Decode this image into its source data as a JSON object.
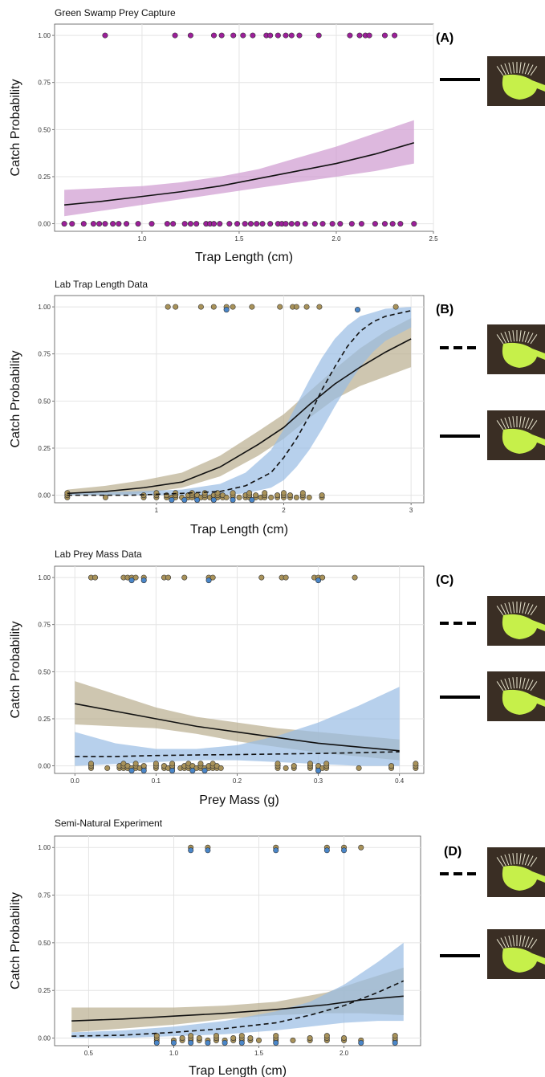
{
  "colors": {
    "magenta_points": "#9c1f9a",
    "magenta_band": "#cf9ad0",
    "tan_points": "#a8925a",
    "tan_band": "#b9ae8e",
    "blue_points": "#4a86c8",
    "blue_band": "#98bce4",
    "curve": "#111111",
    "grid": "#e4e4e4",
    "trap_photo_bg": "#3a2e24",
    "trap_green": "#c6f04a"
  },
  "legend_icons": [
    "solid-line-icon",
    "dashed-line-icon",
    "venus-flytrap-photo-icon"
  ],
  "chart_data": [
    {
      "type": "scatter",
      "letter": "(A)",
      "title": "Green Swamp Prey Capture",
      "xlabel": "Trap Length (cm)",
      "ylabel": "Catch Probability",
      "xlim": [
        0.55,
        2.5
      ],
      "ylim": [
        -0.04,
        1.06
      ],
      "xticks": [
        1.0,
        1.5,
        2.0,
        2.5
      ],
      "xtick_labels": [
        "1.0",
        "1.5",
        "2.0",
        "2.5"
      ],
      "yticks": [
        0,
        0.25,
        0.5,
        0.75,
        1.0
      ],
      "ytick_labels": [
        "0.00",
        "0.25",
        "0.50",
        "0.75",
        "1.00"
      ],
      "grid": true,
      "legend": [
        {
          "line": "solid"
        }
      ],
      "series": [
        {
          "style": "solid",
          "color": "magenta",
          "x": [
            0.6,
            0.8,
            1.0,
            1.2,
            1.4,
            1.6,
            1.8,
            2.0,
            2.2,
            2.4
          ],
          "y": [
            0.1,
            0.12,
            0.145,
            0.17,
            0.2,
            0.24,
            0.28,
            0.32,
            0.37,
            0.43
          ],
          "lower": [
            0.04,
            0.07,
            0.1,
            0.13,
            0.16,
            0.19,
            0.22,
            0.25,
            0.28,
            0.32
          ],
          "upper": [
            0.18,
            0.19,
            0.2,
            0.22,
            0.25,
            0.29,
            0.35,
            0.41,
            0.48,
            0.55
          ],
          "points": {
            "x1": [
              0.81,
              1.17,
              1.25,
              1.37,
              1.41,
              1.47,
              1.52,
              1.57,
              1.64,
              1.66,
              1.7,
              1.74,
              1.77,
              1.81,
              1.91,
              2.07,
              2.12,
              2.15,
              2.17,
              2.25,
              2.3
            ],
            "x0": [
              0.6,
              0.64,
              0.7,
              0.75,
              0.78,
              0.81,
              0.85,
              0.88,
              0.92,
              0.98,
              1.05,
              1.13,
              1.16,
              1.22,
              1.25,
              1.28,
              1.33,
              1.35,
              1.37,
              1.4,
              1.45,
              1.49,
              1.53,
              1.56,
              1.59,
              1.62,
              1.66,
              1.7,
              1.72,
              1.74,
              1.77,
              1.8,
              1.84,
              1.89,
              1.93,
              1.98,
              2.02,
              2.08,
              2.13,
              2.2,
              2.25,
              2.29,
              2.33,
              2.4
            ]
          }
        }
      ]
    },
    {
      "type": "scatter",
      "letter": "(B)",
      "title": "Lab Trap Length Data",
      "xlabel": "Trap Length (cm)",
      "ylabel": "Catch Probability",
      "xlim": [
        0.2,
        3.1
      ],
      "ylim": [
        -0.04,
        1.06
      ],
      "xticks": [
        1,
        2,
        3
      ],
      "xtick_labels": [
        "1",
        "2",
        "3"
      ],
      "yticks": [
        0,
        0.25,
        0.5,
        0.75,
        1.0
      ],
      "ytick_labels": [
        "0.00",
        "0.25",
        "0.50",
        "0.75",
        "1.00"
      ],
      "grid": true,
      "legend": [
        {
          "line": "dashed"
        },
        {
          "line": "solid"
        }
      ],
      "series": [
        {
          "style": "solid",
          "color": "tan",
          "x": [
            0.3,
            0.6,
            0.9,
            1.2,
            1.5,
            1.8,
            2.0,
            2.2,
            2.4,
            2.6,
            2.8,
            3.0
          ],
          "y": [
            0.01,
            0.02,
            0.04,
            0.07,
            0.15,
            0.27,
            0.36,
            0.48,
            0.59,
            0.68,
            0.76,
            0.83
          ],
          "lower": [
            0.0,
            0.0,
            0.01,
            0.04,
            0.1,
            0.21,
            0.3,
            0.41,
            0.51,
            0.58,
            0.63,
            0.68
          ],
          "upper": [
            0.03,
            0.05,
            0.08,
            0.12,
            0.21,
            0.34,
            0.43,
            0.55,
            0.67,
            0.78,
            0.87,
            0.94
          ]
        },
        {
          "style": "dashed",
          "color": "blue",
          "x": [
            0.3,
            0.8,
            1.2,
            1.5,
            1.7,
            1.9,
            2.0,
            2.1,
            2.2,
            2.3,
            2.4,
            2.5,
            2.6,
            2.7,
            2.8,
            3.0
          ],
          "y": [
            0.0,
            0.0,
            0.01,
            0.02,
            0.05,
            0.12,
            0.2,
            0.3,
            0.42,
            0.56,
            0.68,
            0.79,
            0.87,
            0.92,
            0.95,
            0.98
          ],
          "lower": [
            0.0,
            0.0,
            0.0,
            0.0,
            0.01,
            0.04,
            0.08,
            0.15,
            0.24,
            0.35,
            0.47,
            0.58,
            0.68,
            0.76,
            0.82,
            0.89
          ],
          "upper": [
            0.01,
            0.02,
            0.03,
            0.06,
            0.12,
            0.24,
            0.35,
            0.48,
            0.61,
            0.73,
            0.83,
            0.9,
            0.95,
            0.97,
            0.99,
            1.0
          ]
        }
      ],
      "points": {
        "tan_1": [
          1.09,
          1.15,
          1.35,
          1.45,
          1.55,
          1.6,
          1.75,
          1.97,
          2.07,
          2.1,
          2.18,
          2.28,
          2.88
        ],
        "blue_1": [
          1.55,
          2.58
        ],
        "tan_0": [
          0.3,
          0.6,
          0.9,
          1.0,
          1.08,
          1.12,
          1.15,
          1.2,
          1.25,
          1.28,
          1.32,
          1.35,
          1.38,
          1.42,
          1.45,
          1.48,
          1.52,
          1.55,
          1.6,
          1.65,
          1.7,
          1.73,
          1.78,
          1.82,
          1.85,
          1.9,
          1.95,
          2.0,
          2.05,
          2.1,
          2.15,
          2.2,
          2.3
        ],
        "blue_0": [
          1.12,
          1.22,
          1.32,
          1.45,
          1.6,
          1.75
        ]
      }
    },
    {
      "type": "scatter",
      "letter": "(C)",
      "title": "Lab Prey Mass Data",
      "xlabel": "Prey Mass (g)",
      "ylabel": "Catch Probability",
      "xlim": [
        -0.025,
        0.43
      ],
      "ylim": [
        -0.04,
        1.06
      ],
      "xticks": [
        0.0,
        0.1,
        0.2,
        0.3,
        0.4
      ],
      "xtick_labels": [
        "0.0",
        "0.1",
        "0.2",
        "0.3",
        "0.4"
      ],
      "yticks": [
        0,
        0.25,
        0.5,
        0.75,
        1.0
      ],
      "ytick_labels": [
        "0.00",
        "0.25",
        "0.50",
        "0.75",
        "1.00"
      ],
      "grid": true,
      "legend": [
        {
          "line": "dashed"
        },
        {
          "line": "solid"
        }
      ],
      "series": [
        {
          "style": "solid",
          "color": "tan",
          "x": [
            0.0,
            0.05,
            0.1,
            0.15,
            0.2,
            0.25,
            0.3,
            0.35,
            0.4
          ],
          "y": [
            0.33,
            0.29,
            0.25,
            0.21,
            0.18,
            0.15,
            0.12,
            0.1,
            0.08
          ],
          "lower": [
            0.22,
            0.21,
            0.2,
            0.17,
            0.13,
            0.1,
            0.07,
            0.05,
            0.03
          ],
          "upper": [
            0.45,
            0.38,
            0.31,
            0.26,
            0.23,
            0.2,
            0.18,
            0.16,
            0.14
          ]
        },
        {
          "style": "dashed",
          "color": "blue",
          "x": [
            0.0,
            0.05,
            0.1,
            0.15,
            0.2,
            0.25,
            0.3,
            0.35,
            0.4
          ],
          "y": [
            0.05,
            0.05,
            0.055,
            0.058,
            0.06,
            0.063,
            0.066,
            0.07,
            0.075
          ],
          "lower": [
            0.0,
            0.01,
            0.02,
            0.03,
            0.03,
            0.02,
            0.01,
            0.0,
            0.0
          ],
          "upper": [
            0.18,
            0.12,
            0.09,
            0.09,
            0.11,
            0.16,
            0.23,
            0.32,
            0.42
          ]
        }
      ],
      "points": {
        "tan_1": [
          0.02,
          0.025,
          0.06,
          0.065,
          0.07,
          0.075,
          0.085,
          0.11,
          0.115,
          0.135,
          0.165,
          0.17,
          0.23,
          0.255,
          0.26,
          0.295,
          0.3,
          0.305,
          0.345
        ],
        "blue_1": [
          0.07,
          0.085,
          0.165,
          0.3
        ],
        "tan_0": [
          0.02,
          0.04,
          0.055,
          0.06,
          0.065,
          0.07,
          0.075,
          0.08,
          0.085,
          0.1,
          0.11,
          0.115,
          0.12,
          0.13,
          0.135,
          0.14,
          0.145,
          0.15,
          0.155,
          0.16,
          0.165,
          0.17,
          0.175,
          0.18,
          0.25,
          0.26,
          0.27,
          0.29,
          0.3,
          0.305,
          0.31,
          0.35,
          0.39,
          0.42
        ],
        "blue_0": [
          0.07,
          0.085,
          0.12,
          0.145,
          0.16,
          0.3
        ]
      }
    },
    {
      "type": "scatter",
      "letter": "(D)",
      "title": "Semi-Natural Experiment",
      "xlabel": "Trap Length (cm)",
      "ylabel": "Catch Probability",
      "xlim": [
        0.3,
        2.45
      ],
      "ylim": [
        -0.04,
        1.06
      ],
      "xticks": [
        0.5,
        1.0,
        1.5,
        2.0
      ],
      "xtick_labels": [
        "0.5",
        "1.0",
        "1.5",
        "2.0"
      ],
      "yticks": [
        0,
        0.25,
        0.5,
        0.75,
        1.0
      ],
      "ytick_labels": [
        "0.00",
        "0.25",
        "0.50",
        "0.75",
        "1.00"
      ],
      "grid": true,
      "legend": [
        {
          "line": "dashed"
        },
        {
          "line": "solid"
        }
      ],
      "series": [
        {
          "style": "solid",
          "color": "tan",
          "x": [
            0.4,
            0.7,
            1.0,
            1.3,
            1.6,
            1.9,
            2.1,
            2.35
          ],
          "y": [
            0.09,
            0.1,
            0.115,
            0.13,
            0.15,
            0.175,
            0.2,
            0.22
          ],
          "lower": [
            0.03,
            0.05,
            0.07,
            0.1,
            0.12,
            0.13,
            0.13,
            0.12
          ],
          "upper": [
            0.16,
            0.16,
            0.16,
            0.17,
            0.19,
            0.24,
            0.3,
            0.37
          ]
        },
        {
          "style": "dashed",
          "color": "blue",
          "x": [
            0.4,
            0.7,
            1.0,
            1.3,
            1.6,
            1.8,
            2.0,
            2.2,
            2.35
          ],
          "y": [
            0.01,
            0.015,
            0.03,
            0.05,
            0.08,
            0.12,
            0.17,
            0.24,
            0.3
          ],
          "lower": [
            0.0,
            0.0,
            0.01,
            0.02,
            0.04,
            0.06,
            0.08,
            0.09,
            0.09
          ],
          "upper": [
            0.03,
            0.04,
            0.06,
            0.09,
            0.14,
            0.19,
            0.28,
            0.4,
            0.5
          ]
        }
      ],
      "points": {
        "tan_1": [
          1.1,
          1.2,
          1.6,
          1.9,
          2.0,
          2.1
        ],
        "blue_1": [
          1.1,
          1.2,
          1.6,
          1.9,
          2.0
        ],
        "tan_0": [
          0.9,
          1.0,
          1.05,
          1.1,
          1.15,
          1.2,
          1.25,
          1.3,
          1.35,
          1.4,
          1.45,
          1.5,
          1.6,
          1.7,
          1.8,
          1.9,
          2.0,
          2.1,
          2.3
        ],
        "blue_0": [
          0.9,
          1.0,
          1.1,
          1.2,
          1.3,
          1.4,
          1.6,
          2.1,
          2.3
        ]
      }
    }
  ]
}
